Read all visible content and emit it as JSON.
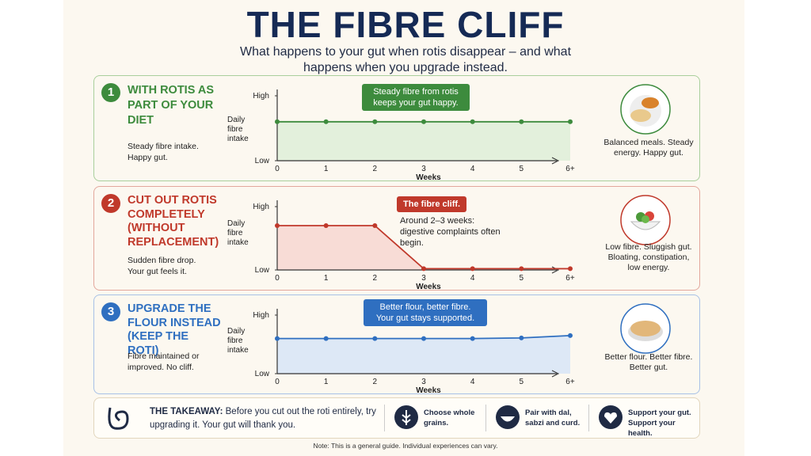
{
  "header": {
    "title": "THE FIBRE CLIFF",
    "subtitle": "What happens to your gut when rotis disappear – and what happens when you upgrade instead."
  },
  "panels": [
    {
      "number": "1",
      "heading": "WITH ROTIS AS PART OF YOUR DIET",
      "note": "Steady fibre intake. Happy gut.",
      "outcome": "Balanced meals. Steady energy. Happy gut."
    },
    {
      "number": "2",
      "heading": "CUT OUT ROTIS COMPLETELY (WITHOUT REPLACEMENT)",
      "note": "Sudden fibre drop. Your gut feels it.",
      "outcome": "Low fibre. Sluggish gut. Bloating, constipation, low energy."
    },
    {
      "number": "3",
      "heading": "UPGRADE THE FLOUR INSTEAD (KEEP THE ROTI)",
      "note": "Fibre maintained or improved. No cliff.",
      "outcome": "Better flour. Better fibre. Better gut."
    }
  ],
  "chart_data": [
    {
      "type": "area",
      "color": "#3d8b3d",
      "fill": "#e3f0dc",
      "x_label": "Weeks",
      "y_label": "Daily fibre intake",
      "categories": [
        "0",
        "1",
        "2",
        "3",
        "4",
        "5",
        "6+"
      ],
      "values": [
        6,
        6,
        6,
        6,
        6,
        6,
        6
      ],
      "ylim": [
        0,
        10
      ],
      "yticks": [
        {
          "value": 0,
          "label": "Low"
        },
        {
          "value": 10,
          "label": "High"
        }
      ],
      "annotations": [
        "Steady fibre from rotis keeps your gut happy."
      ]
    },
    {
      "type": "area",
      "color": "#c0392b",
      "fill": "#f8dcd6",
      "x_label": "Weeks",
      "y_label": "Daily fibre intake",
      "categories": [
        "0",
        "1",
        "2",
        "3",
        "4",
        "5",
        "6+"
      ],
      "values": [
        7,
        7,
        7,
        0.2,
        0.2,
        0.2,
        0.2
      ],
      "ylim": [
        0,
        10
      ],
      "yticks": [
        {
          "value": 0,
          "label": "Low"
        },
        {
          "value": 10,
          "label": "High"
        }
      ],
      "annotations": [
        "The fibre cliff.",
        "Around 2–3 weeks: digestive complaints often begin."
      ]
    },
    {
      "type": "area",
      "color": "#2f6fc0",
      "fill": "#dde8f6",
      "x_label": "Weeks",
      "y_label": "Daily fibre intake",
      "categories": [
        "0",
        "1",
        "2",
        "3",
        "4",
        "5",
        "6+"
      ],
      "values": [
        6,
        6,
        6,
        6,
        6,
        6.1,
        6.5
      ],
      "ylim": [
        0,
        10
      ],
      "yticks": [
        {
          "value": 0,
          "label": "Low"
        },
        {
          "value": 10,
          "label": "High"
        }
      ],
      "annotations": [
        "Better flour, better fibre. Your gut stays supported."
      ]
    }
  ],
  "takeaway": {
    "label": "THE TAKEAWAY:",
    "text": "Before you cut out the roti entirely, try upgrading it. Your gut will thank you.",
    "tips": [
      "Choose whole grains.",
      "Pair with dal, sabzi and curd.",
      "Support your gut. Support your health."
    ]
  },
  "footnote": "Note: This is a general guide. Individual experiences can vary."
}
